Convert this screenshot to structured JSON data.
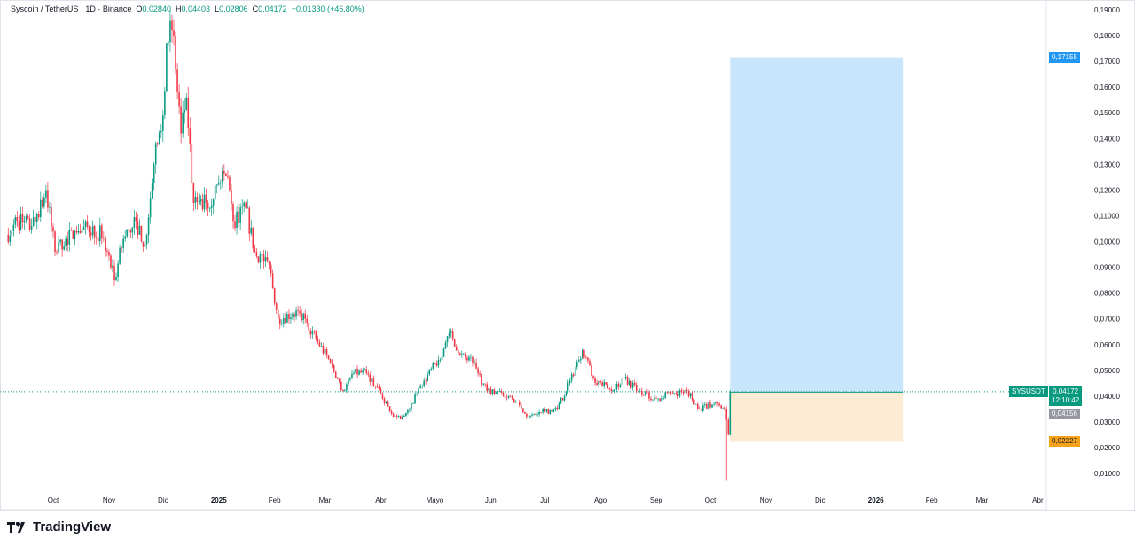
{
  "header": {
    "symbol": "Syscoin / TetherUS · 1D · Binance",
    "o_label": "O",
    "o": "0,02840",
    "h_label": "H",
    "h": "0,04403",
    "l_label": "L",
    "l": "0,02806",
    "c_label": "C",
    "c": "0,04172",
    "change": "+0,01330 (+46,80%)"
  },
  "brand": {
    "name": "TradingView"
  },
  "labels": {
    "ticker": "SYSUSDT",
    "last": "0,04172",
    "countdown": "12:10:42",
    "entry": "0,04156",
    "stop": "0,02227",
    "target": "0,17155"
  },
  "colors": {
    "up": "#089981",
    "down": "#f23645",
    "target_zone": "#c8e6fb",
    "stop_zone": "#fdebd3",
    "target_badge": "#2196f3",
    "stop_badge": "#f7a21b",
    "entry_badge": "#9598a1"
  },
  "chart_data": {
    "type": "candlestick",
    "title": "Syscoin / TetherUS · 1D · Binance",
    "ylim": [
      0.005,
      0.195
    ],
    "y_ticks": [
      "0,01000",
      "0,02000",
      "0,03000",
      "0,04000",
      "0,05000",
      "0,06000",
      "0,07000",
      "0,08000",
      "0,09000",
      "0,10000",
      "0,11000",
      "0,12000",
      "0,13000",
      "0,14000",
      "0,15000",
      "0,16000",
      "0,17000",
      "0,18000",
      "0,19000"
    ],
    "x_ticks": [
      [
        "2024-10-01",
        "Oct"
      ],
      [
        "2024-11-01",
        "Nov"
      ],
      [
        "2024-12-01",
        "Dic"
      ],
      [
        "2025-01-01",
        "2025"
      ],
      [
        "2025-02-01",
        "Feb"
      ],
      [
        "2025-03-01",
        "Mar"
      ],
      [
        "2025-04-01",
        "Abr"
      ],
      [
        "2025-05-01",
        "Mayo"
      ],
      [
        "2025-06-01",
        "Jun"
      ],
      [
        "2025-07-01",
        "Jul"
      ],
      [
        "2025-08-01",
        "Ago"
      ],
      [
        "2025-09-01",
        "Sep"
      ],
      [
        "2025-10-01",
        "Oct"
      ],
      [
        "2025-11-01",
        "Nov"
      ],
      [
        "2025-12-01",
        "Dic"
      ],
      [
        "2026-01-01",
        "2026"
      ],
      [
        "2026-02-01",
        "Feb"
      ],
      [
        "2026-03-01",
        "Mar"
      ],
      [
        "2026-04-01",
        "Abr"
      ]
    ],
    "approx_closes": [
      [
        "2024-09-05",
        0.1026
      ],
      [
        "2024-09-11",
        0.108
      ],
      [
        "2024-09-19",
        0.106
      ],
      [
        "2024-09-27",
        0.12
      ],
      [
        "2024-10-02",
        0.096
      ],
      [
        "2024-10-08",
        0.101
      ],
      [
        "2024-10-15",
        0.104
      ],
      [
        "2024-10-23",
        0.106
      ],
      [
        "2024-10-29",
        0.101
      ],
      [
        "2024-11-04",
        0.085
      ],
      [
        "2024-11-09",
        0.101
      ],
      [
        "2024-11-16",
        0.108
      ],
      [
        "2024-11-21",
        0.099
      ],
      [
        "2024-11-26",
        0.13
      ],
      [
        "2024-12-01",
        0.149
      ],
      [
        "2024-12-03",
        0.177
      ],
      [
        "2024-12-06",
        0.182
      ],
      [
        "2024-12-11",
        0.142
      ],
      [
        "2024-12-14",
        0.156
      ],
      [
        "2024-12-18",
        0.115
      ],
      [
        "2024-12-25",
        0.115
      ],
      [
        "2025-01-02",
        0.123
      ],
      [
        "2025-01-06",
        0.125
      ],
      [
        "2025-01-09",
        0.108
      ],
      [
        "2025-01-16",
        0.113
      ],
      [
        "2025-01-21",
        0.096
      ],
      [
        "2025-01-29",
        0.091
      ],
      [
        "2025-02-03",
        0.07
      ],
      [
        "2025-02-11",
        0.072
      ],
      [
        "2025-02-18",
        0.07
      ],
      [
        "2025-02-25",
        0.061
      ],
      [
        "2025-03-04",
        0.053
      ],
      [
        "2025-03-11",
        0.042
      ],
      [
        "2025-03-17",
        0.049
      ],
      [
        "2025-03-24",
        0.049
      ],
      [
        "2025-04-01",
        0.041
      ],
      [
        "2025-04-08",
        0.032
      ],
      [
        "2025-04-13",
        0.032
      ],
      [
        "2025-04-18",
        0.037
      ],
      [
        "2025-04-25",
        0.046
      ],
      [
        "2025-05-03",
        0.054
      ],
      [
        "2025-05-10",
        0.065
      ],
      [
        "2025-05-15",
        0.056
      ],
      [
        "2025-05-22",
        0.053
      ],
      [
        "2025-05-30",
        0.042
      ],
      [
        "2025-06-06",
        0.042
      ],
      [
        "2025-06-13",
        0.039
      ],
      [
        "2025-06-22",
        0.032
      ],
      [
        "2025-07-01",
        0.034
      ],
      [
        "2025-07-08",
        0.035
      ],
      [
        "2025-07-15",
        0.046
      ],
      [
        "2025-07-22",
        0.058
      ],
      [
        "2025-07-28",
        0.047
      ],
      [
        "2025-08-07",
        0.042
      ],
      [
        "2025-08-14",
        0.047
      ],
      [
        "2025-08-22",
        0.042
      ],
      [
        "2025-09-01",
        0.039
      ],
      [
        "2025-09-10",
        0.041
      ],
      [
        "2025-09-18",
        0.042
      ],
      [
        "2025-09-25",
        0.035
      ],
      [
        "2025-10-03",
        0.037
      ],
      [
        "2025-10-09",
        0.035
      ],
      [
        "2025-10-11",
        0.025
      ],
      [
        "2025-10-12",
        0.04172
      ]
    ],
    "flash_low": {
      "date": "2025-10-10",
      "price": 0.0071
    },
    "last_price": 0.04172,
    "long_position": {
      "start": "2025-10-12",
      "end": "2026-01-16",
      "entry": 0.04156,
      "stop": 0.02227,
      "target": 0.17155
    }
  }
}
